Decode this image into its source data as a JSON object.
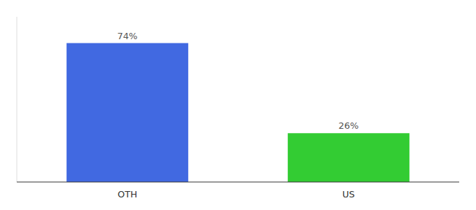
{
  "chart_data": {
    "type": "bar",
    "categories": [
      "OTH",
      "US"
    ],
    "values": [
      74,
      26
    ],
    "value_labels": [
      "74%",
      "26%"
    ],
    "colors": [
      "#4169e1",
      "#33cc33"
    ],
    "ylim": [
      0,
      88
    ],
    "data_labels": true,
    "tick_labels": "x"
  }
}
